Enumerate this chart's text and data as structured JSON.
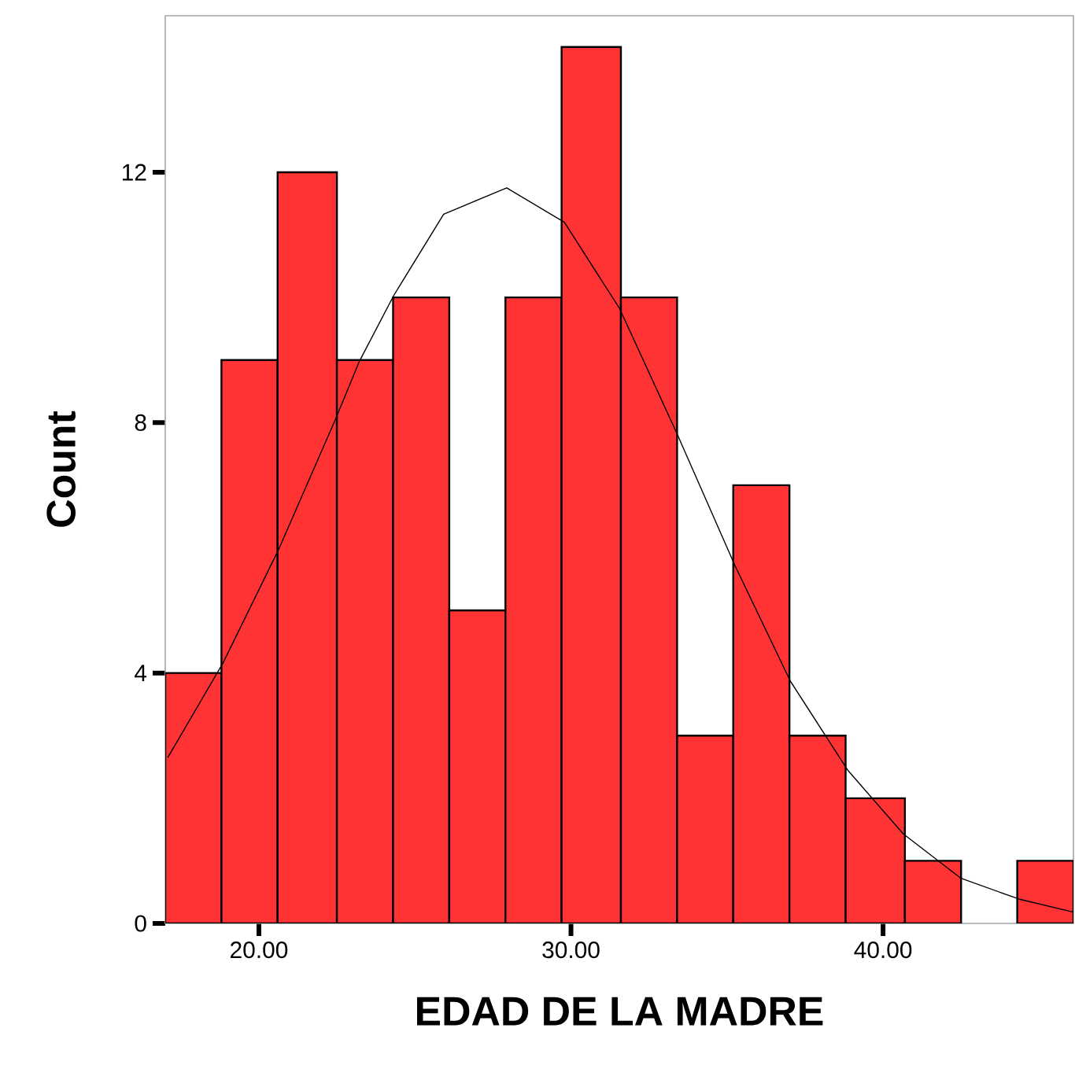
{
  "chart_data": {
    "type": "histogram",
    "xlabel": "EDAD DE LA MADRE",
    "ylabel": "Count",
    "xlim": [
      17.0,
      46.1
    ],
    "ylim": [
      0,
      14.5
    ],
    "xticks": [
      {
        "value": 20,
        "label": "20.00"
      },
      {
        "value": 30,
        "label": "30.00"
      },
      {
        "value": 40,
        "label": "40.00"
      }
    ],
    "yticks": [
      0,
      4,
      8,
      12
    ],
    "grid": false,
    "series": [
      {
        "type": "histogram",
        "color": "#ff3333",
        "bins": [
          17.0,
          18.8,
          20.6,
          22.5,
          24.3,
          26.1,
          27.9,
          29.7,
          31.6,
          33.4,
          35.2,
          37.0,
          38.8,
          40.7,
          42.5,
          44.3,
          46.1
        ],
        "values": [
          4,
          9,
          12,
          9,
          10,
          5,
          10,
          14,
          10,
          3,
          7,
          3,
          2,
          1,
          0,
          1
        ]
      },
      {
        "type": "line",
        "color": "#000000",
        "x": [
          17.08,
          18.85,
          20.62,
          22.46,
          23.22,
          24.32,
          25.92,
          27.94,
          29.79,
          31.56,
          33.41,
          35.26,
          37.03,
          38.88,
          40.65,
          42.5,
          44.35,
          46.1
        ],
        "values": [
          2.65,
          4.16,
          5.96,
          8.06,
          8.98,
          10.03,
          11.33,
          11.75,
          11.2,
          9.82,
          7.81,
          5.71,
          3.87,
          2.44,
          1.43,
          0.72,
          0.39,
          0.18
        ]
      }
    ]
  }
}
